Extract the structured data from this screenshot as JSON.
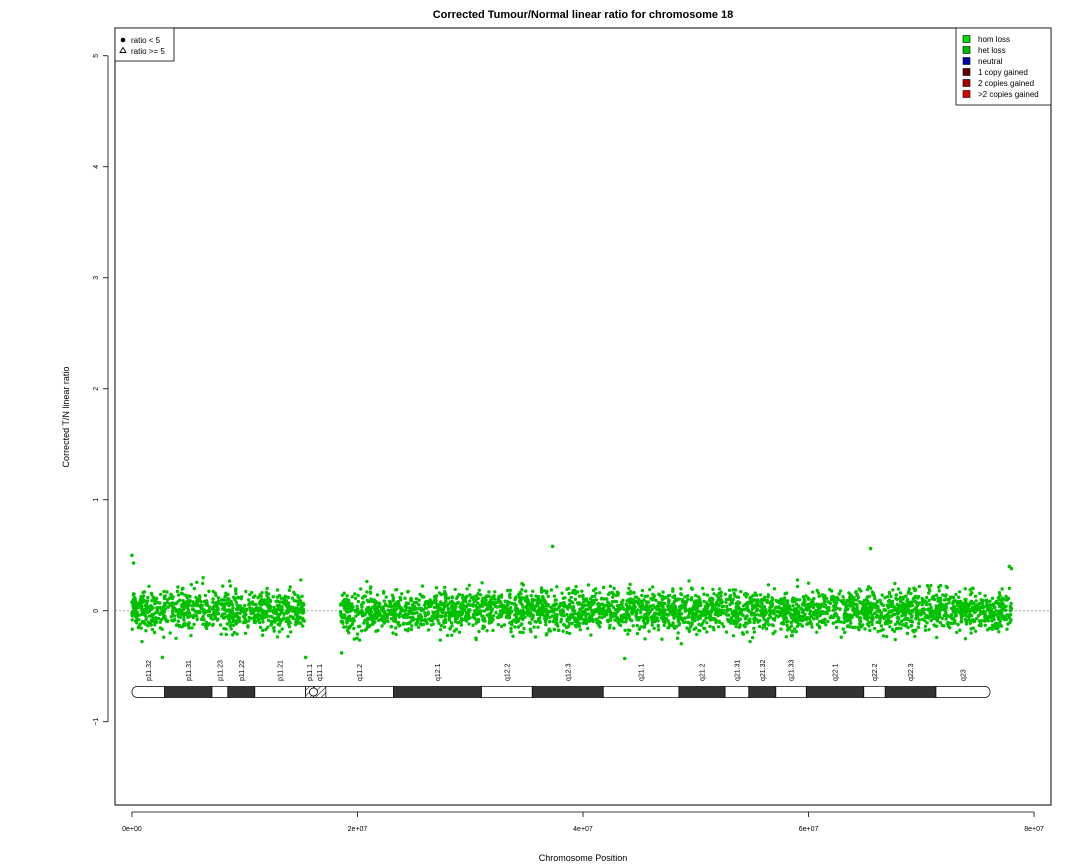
{
  "chart_data": {
    "type": "scatter",
    "title": "Corrected Tumour/Normal linear ratio for chromosome  18",
    "xlabel": "Chromosome Position",
    "ylabel": "Corrected T/N linear ratio",
    "xlim": [
      -1500000,
      81500000
    ],
    "ylim": [
      -1.75,
      5.25
    ],
    "x_ticks": [
      0,
      20000000,
      40000000,
      60000000,
      80000000
    ],
    "x_tick_labels": [
      "0e+00",
      "2e+07",
      "4e+07",
      "6e+07",
      "8e+07"
    ],
    "y_ticks": [
      -1,
      0,
      1,
      2,
      3,
      4,
      5
    ],
    "y_tick_labels": [
      "−1",
      "0",
      "1",
      "2",
      "3",
      "4",
      "5"
    ],
    "reference_line_y": 0,
    "reference_line_color": "#888888",
    "point_color": "#00c000",
    "point_count": 4200,
    "segments": [
      {
        "x_start": 0,
        "x_end": 15300000,
        "mean": 0.0,
        "spread": 0.12
      },
      {
        "x_start": 18500000,
        "x_end": 78000000,
        "mean": 0.0,
        "spread": 0.12
      }
    ],
    "notable_points": [
      {
        "x": 0,
        "y": 0.5
      },
      {
        "x": 150000,
        "y": 0.43
      },
      {
        "x": 2700000,
        "y": -0.42
      },
      {
        "x": 15400000,
        "y": -0.42
      },
      {
        "x": 18600000,
        "y": -0.38
      },
      {
        "x": 37300000,
        "y": 0.58
      },
      {
        "x": 43700000,
        "y": -0.43
      },
      {
        "x": 65500000,
        "y": 0.56
      },
      {
        "x": 77800000,
        "y": 0.4
      },
      {
        "x": 78000000,
        "y": 0.38
      }
    ],
    "legend_symbols": {
      "position": "top-left",
      "items": [
        {
          "symbol": "dot",
          "label": "ratio < 5"
        },
        {
          "symbol": "triangle",
          "label": "ratio >= 5"
        }
      ]
    },
    "legend_states": {
      "position": "top-right",
      "items": [
        {
          "label": "hom loss",
          "color": "#00dd00"
        },
        {
          "label": "het loss",
          "color": "#00bb00"
        },
        {
          "label": "neutral",
          "color": "#0000aa"
        },
        {
          "label": "1 copy gained",
          "color": "#660000"
        },
        {
          "label": "2 copies gained",
          "color": "#aa0000"
        },
        {
          "label": ">2 copies gained",
          "color": "#dd0000"
        }
      ]
    },
    "ideogram": {
      "y": -0.75,
      "bands": [
        {
          "name": "p11.32",
          "start": 0,
          "end": 2900000,
          "stain": "gneg"
        },
        {
          "name": "p11.31",
          "start": 2900000,
          "end": 7100000,
          "stain": "gpos"
        },
        {
          "name": "p11.23",
          "start": 7100000,
          "end": 8500000,
          "stain": "gneg"
        },
        {
          "name": "p11.22",
          "start": 8500000,
          "end": 10900000,
          "stain": "gpos"
        },
        {
          "name": "p11.21",
          "start": 10900000,
          "end": 15400000,
          "stain": "gneg"
        },
        {
          "name": "p11.1",
          "start": 15400000,
          "end": 16100000,
          "stain": "acen"
        },
        {
          "name": "q11.1",
          "start": 16100000,
          "end": 17200000,
          "stain": "acen"
        },
        {
          "name": "q11.2",
          "start": 17200000,
          "end": 23200000,
          "stain": "gneg"
        },
        {
          "name": "q12.1",
          "start": 23200000,
          "end": 31000000,
          "stain": "gpos"
        },
        {
          "name": "q12.2",
          "start": 31000000,
          "end": 35500000,
          "stain": "gneg"
        },
        {
          "name": "q12.3",
          "start": 35500000,
          "end": 41800000,
          "stain": "gpos"
        },
        {
          "name": "q21.1",
          "start": 41800000,
          "end": 48500000,
          "stain": "gneg"
        },
        {
          "name": "q21.2",
          "start": 48500000,
          "end": 52600000,
          "stain": "gpos"
        },
        {
          "name": "q21.31",
          "start": 52600000,
          "end": 54700000,
          "stain": "gneg"
        },
        {
          "name": "q21.32",
          "start": 54700000,
          "end": 57100000,
          "stain": "gpos"
        },
        {
          "name": "q21.33",
          "start": 57100000,
          "end": 59800000,
          "stain": "gneg"
        },
        {
          "name": "q22.1",
          "start": 59800000,
          "end": 64900000,
          "stain": "gpos"
        },
        {
          "name": "q22.2",
          "start": 64900000,
          "end": 66800000,
          "stain": "gneg"
        },
        {
          "name": "q22.3",
          "start": 66800000,
          "end": 71300000,
          "stain": "gpos"
        },
        {
          "name": "q23",
          "start": 71300000,
          "end": 76100000,
          "stain": "gneg"
        }
      ]
    }
  }
}
